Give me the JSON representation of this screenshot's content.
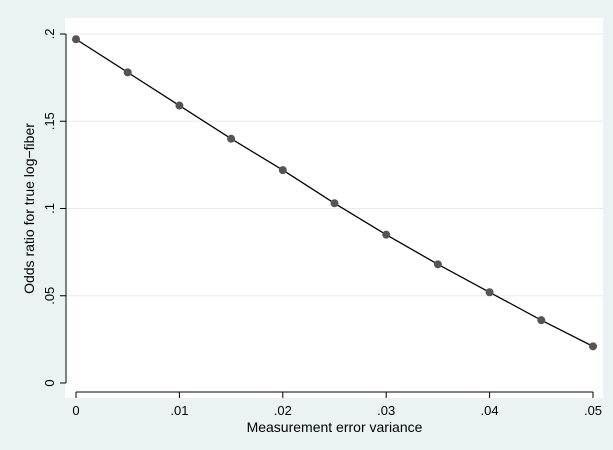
{
  "chart_data": {
    "type": "line",
    "title": "",
    "xlabel": "Measurement error variance",
    "ylabel": "Odds ratio for true log−fiber",
    "xlim": [
      0,
      0.05
    ],
    "ylim": [
      0,
      0.2
    ],
    "x_ticks": [
      {
        "value": 0,
        "label": "0"
      },
      {
        "value": 0.01,
        "label": ".01"
      },
      {
        "value": 0.02,
        "label": ".02"
      },
      {
        "value": 0.03,
        "label": ".03"
      },
      {
        "value": 0.04,
        "label": ".04"
      },
      {
        "value": 0.05,
        "label": ".05"
      }
    ],
    "y_ticks": [
      {
        "value": 0,
        "label": "0"
      },
      {
        "value": 0.05,
        "label": ".05"
      },
      {
        "value": 0.1,
        "label": ".1"
      },
      {
        "value": 0.15,
        "label": ".15"
      },
      {
        "value": 0.2,
        "label": ".2"
      }
    ],
    "grid": true,
    "legend": "none",
    "series": [
      {
        "x": [
          0,
          0.005,
          0.01,
          0.015,
          0.02,
          0.025,
          0.03,
          0.035,
          0.04,
          0.045,
          0.05
        ],
        "y": [
          0.197,
          0.178,
          0.159,
          0.14,
          0.122,
          0.103,
          0.085,
          0.068,
          0.052,
          0.036,
          0.021
        ],
        "line_color": "#000000",
        "marker_color": "#555555"
      }
    ],
    "colors": {
      "outer_background": "#eaf2f3",
      "plot_background": "#ffffff",
      "grid": "#e6ecee",
      "axis": "#000000"
    }
  }
}
